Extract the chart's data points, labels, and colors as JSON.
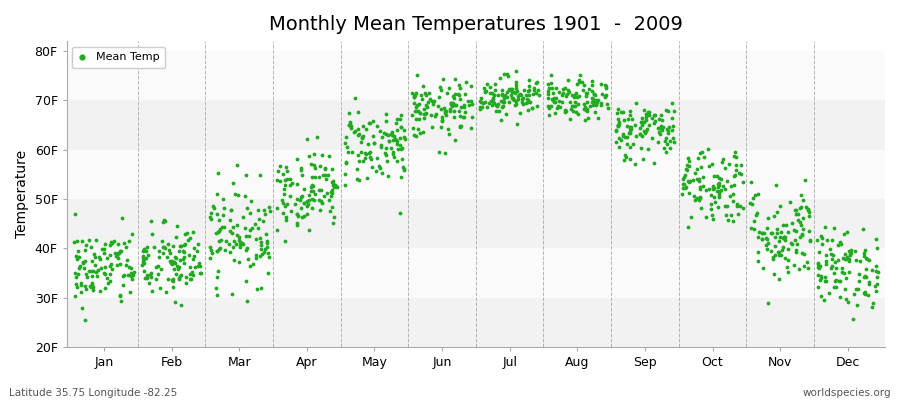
{
  "title": "Monthly Mean Temperatures 1901  -  2009",
  "ylabel": "Temperature",
  "xlabel_labels": [
    "Jan",
    "Feb",
    "Mar",
    "Apr",
    "May",
    "Jun",
    "Jul",
    "Aug",
    "Sep",
    "Oct",
    "Nov",
    "Dec"
  ],
  "ytick_labels": [
    "20F",
    "30F",
    "40F",
    "50F",
    "60F",
    "70F",
    "80F"
  ],
  "ytick_values": [
    20,
    30,
    40,
    50,
    60,
    70,
    80
  ],
  "ylim": [
    20,
    82
  ],
  "legend_label": "Mean Temp",
  "dot_color": "#22aa22",
  "dot_size": 3,
  "bg_color": "#ffffff",
  "stripe_even": "#f2f2f2",
  "stripe_odd": "#fafafa",
  "vline_color": "#888888",
  "title_fontsize": 14,
  "axis_fontsize": 10,
  "tick_fontsize": 9,
  "footer_left": "Latitude 35.75 Longitude -82.25",
  "footer_right": "worldspecies.org",
  "num_years": 109,
  "monthly_means": [
    36,
    37,
    43,
    52,
    61,
    68,
    71,
    70,
    64,
    53,
    43,
    36
  ],
  "monthly_stds": [
    4,
    4,
    5,
    4,
    4,
    3,
    2,
    2,
    3,
    4,
    5,
    4
  ]
}
